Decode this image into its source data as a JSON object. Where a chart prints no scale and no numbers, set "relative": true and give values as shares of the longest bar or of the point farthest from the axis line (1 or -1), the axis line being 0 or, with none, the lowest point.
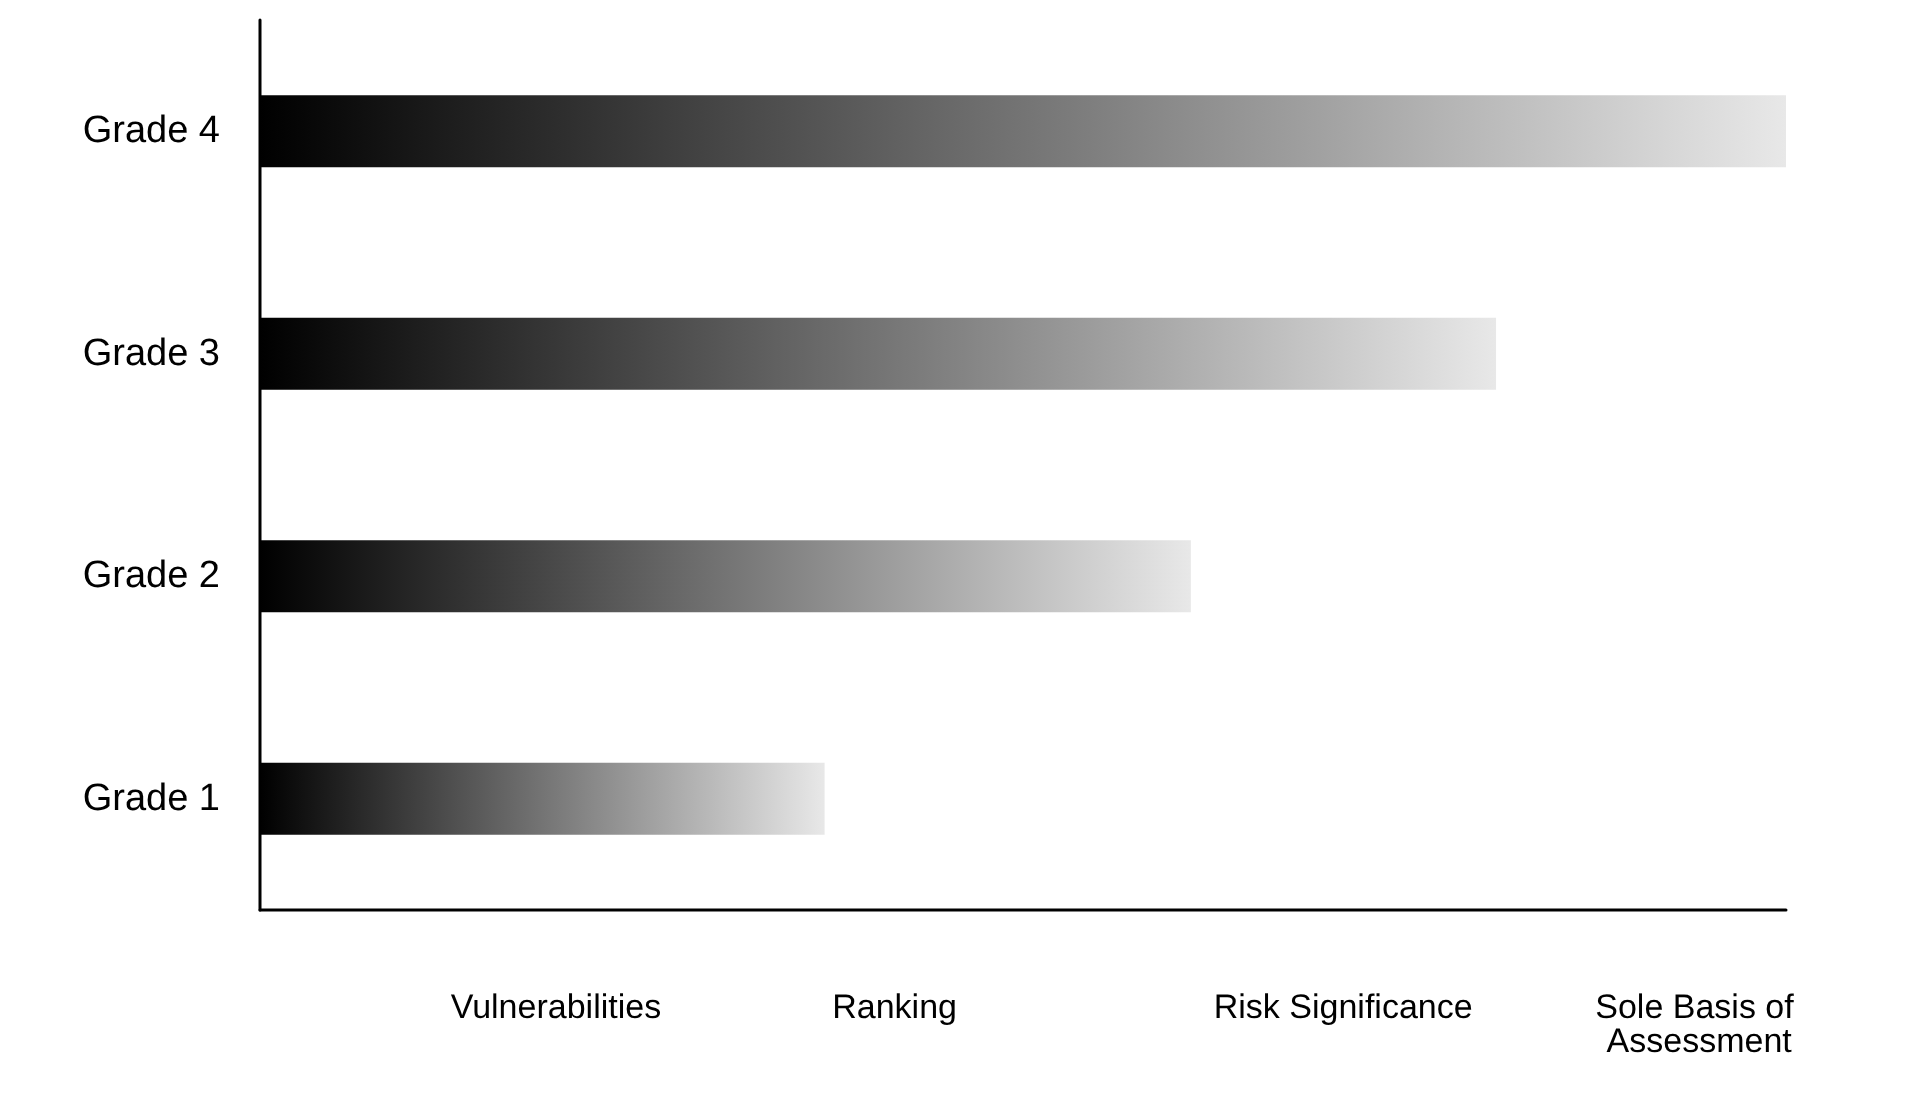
{
  "chart_data": {
    "type": "bar",
    "orientation": "horizontal",
    "relative": true,
    "categories": [
      "Grade 4",
      "Grade 3",
      "Grade 2",
      "Grade 1"
    ],
    "series": [
      {
        "values": [
          1,
          0.81,
          0.61,
          0.37
        ]
      }
    ],
    "annotations": [
      "Vulnerabilities",
      "Ranking",
      "Risk Significance",
      "Sole Basis of Assessment"
    ]
  }
}
